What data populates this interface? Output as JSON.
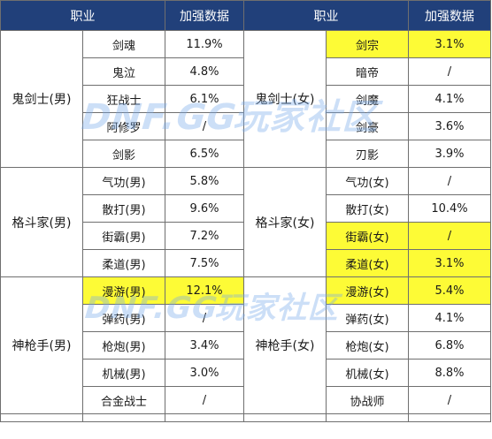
{
  "headers": [
    "职业",
    "加强数据",
    "职业",
    "加强数据"
  ],
  "highlight_color": "#fdfb36",
  "header_color": "#21407a",
  "watermark": "DNF.GG玩家社区",
  "groups": [
    {
      "left_class": "鬼剑士(男)",
      "right_class": "鬼剑士(女)",
      "rows": [
        {
          "lname": "剑魂",
          "lval": "11.9%",
          "rname": "剑宗",
          "rval": "3.1%",
          "lhl": false,
          "rhl": true
        },
        {
          "lname": "鬼泣",
          "lval": "4.8%",
          "rname": "暗帝",
          "rval": "/",
          "lhl": false,
          "rhl": false
        },
        {
          "lname": "狂战士",
          "lval": "6.1%",
          "rname": "剑魔",
          "rval": "4.1%",
          "lhl": false,
          "rhl": false
        },
        {
          "lname": "阿修罗",
          "lval": "/",
          "rname": "剑豪",
          "rval": "3.6%",
          "lhl": false,
          "rhl": false
        },
        {
          "lname": "剑影",
          "lval": "6.5%",
          "rname": "刃影",
          "rval": "3.9%",
          "lhl": false,
          "rhl": false
        }
      ]
    },
    {
      "left_class": "格斗家(男)",
      "right_class": "格斗家(女)",
      "rows": [
        {
          "lname": "气功(男)",
          "lval": "5.8%",
          "rname": "气功(女)",
          "rval": "/",
          "lhl": false,
          "rhl": false
        },
        {
          "lname": "散打(男)",
          "lval": "9.6%",
          "rname": "散打(女)",
          "rval": "10.4%",
          "lhl": false,
          "rhl": false
        },
        {
          "lname": "街霸(男)",
          "lval": "7.2%",
          "rname": "街霸(女)",
          "rval": "/",
          "lhl": false,
          "rhl": true
        },
        {
          "lname": "柔道(男)",
          "lval": "7.5%",
          "rname": "柔道(女)",
          "rval": "3.1%",
          "lhl": false,
          "rhl": true
        }
      ]
    },
    {
      "left_class": "神枪手(男)",
      "right_class": "神枪手(女)",
      "rows": [
        {
          "lname": "漫游(男)",
          "lval": "12.1%",
          "rname": "漫游(女)",
          "rval": "5.4%",
          "lhl": true,
          "rhl": true
        },
        {
          "lname": "弹药(男)",
          "lval": "/",
          "rname": "弹药(女)",
          "rval": "4.1%",
          "lhl": false,
          "rhl": false
        },
        {
          "lname": "枪炮(男)",
          "lval": "3.4%",
          "rname": "枪炮(女)",
          "rval": "6.8%",
          "lhl": false,
          "rhl": false
        },
        {
          "lname": "机械(男)",
          "lval": "3.0%",
          "rname": "机械(女)",
          "rval": "8.8%",
          "lhl": false,
          "rhl": false
        },
        {
          "lname": "合金战士",
          "lval": "/",
          "rname": "协战师",
          "rval": "/",
          "lhl": false,
          "rhl": false
        }
      ]
    }
  ]
}
